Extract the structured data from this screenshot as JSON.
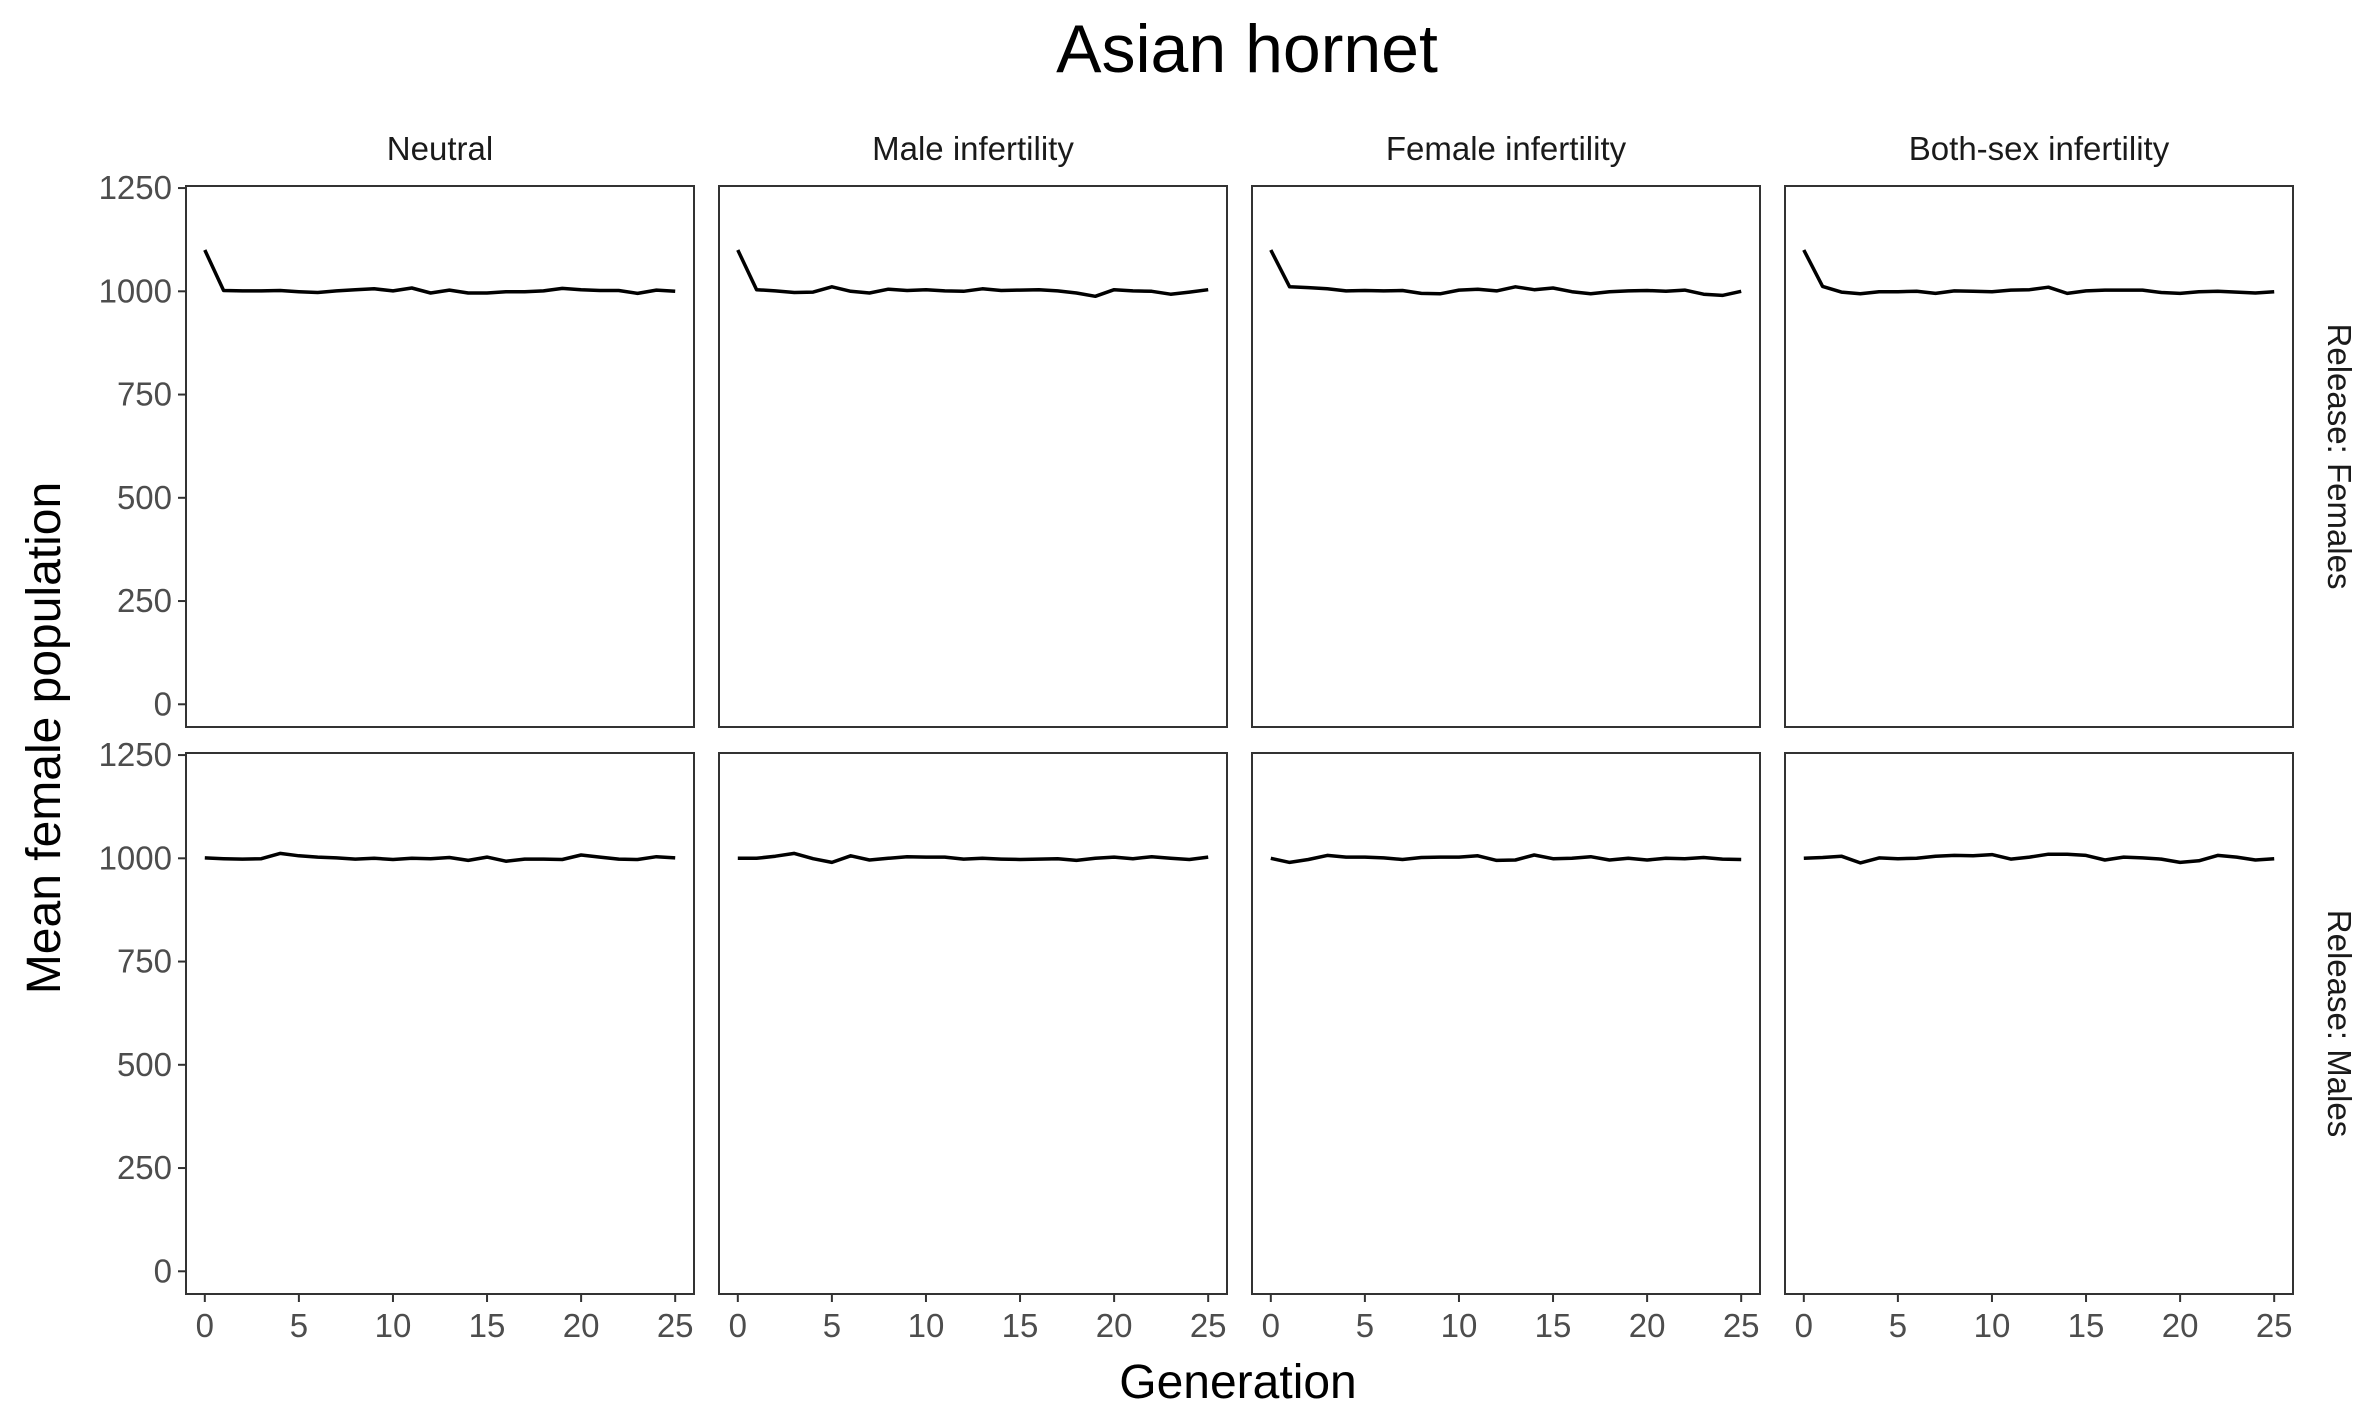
{
  "chart_data": {
    "type": "line",
    "title": "Asian hornet",
    "xlabel": "Generation",
    "ylabel": "Mean female population",
    "xlim": [
      -1,
      26
    ],
    "ylim": [
      -55,
      1255
    ],
    "xticks": [
      0,
      5,
      10,
      15,
      20,
      25
    ],
    "yticks": [
      0,
      250,
      500,
      750,
      1000,
      1250
    ],
    "grid": false,
    "legend": "none",
    "line_color": "#000000",
    "columns": [
      "Neutral",
      "Male infertility",
      "Female infertility",
      "Both-sex infertility"
    ],
    "rows": [
      "Release: Females",
      "Release: Males"
    ],
    "x": [
      0,
      1,
      2,
      3,
      4,
      5,
      6,
      7,
      8,
      9,
      10,
      11,
      12,
      13,
      14,
      15,
      16,
      17,
      18,
      19,
      20,
      21,
      22,
      23,
      24,
      25
    ],
    "panels": [
      {
        "row": "Release: Females",
        "column": "Neutral",
        "values": [
          1100,
          1002,
          1001,
          1001,
          1002,
          999,
          997,
          1001,
          1004,
          1006,
          1001,
          1008,
          996,
          1003,
          996,
          996,
          999,
          999,
          1001,
          1007,
          1004,
          1002,
          1002,
          995,
          1003,
          1000
        ]
      },
      {
        "row": "Release: Females",
        "column": "Male infertility",
        "values": [
          1100,
          1004,
          1001,
          997,
          998,
          1011,
          1000,
          996,
          1005,
          1002,
          1004,
          1001,
          1000,
          1006,
          1002,
          1003,
          1004,
          1001,
          996,
          988,
          1004,
          1001,
          1000,
          993,
          998,
          1004
        ]
      },
      {
        "row": "Release: Females",
        "column": "Female infertility",
        "values": [
          1100,
          1011,
          1009,
          1006,
          1001,
          1002,
          1001,
          1002,
          995,
          994,
          1003,
          1005,
          1001,
          1011,
          1004,
          1008,
          999,
          994,
          999,
          1001,
          1002,
          1000,
          1003,
          993,
          990,
          1000
        ]
      },
      {
        "row": "Release: Females",
        "column": "Both-sex infertility",
        "values": [
          1100,
          1012,
          998,
          994,
          999,
          999,
          1000,
          995,
          1001,
          1000,
          999,
          1003,
          1004,
          1010,
          995,
          1001,
          1003,
          1003,
          1003,
          997,
          995,
          999,
          1000,
          998,
          996,
          999
        ]
      },
      {
        "row": "Release: Males",
        "column": "Neutral",
        "values": [
          1001,
          999,
          998,
          999,
          1012,
          1006,
          1003,
          1001,
          998,
          1000,
          997,
          1000,
          999,
          1002,
          995,
          1003,
          993,
          998,
          998,
          997,
          1008,
          1003,
          998,
          997,
          1004,
          1001
        ]
      },
      {
        "row": "Release: Males",
        "column": "Male infertility",
        "values": [
          1000,
          1000,
          1005,
          1012,
          999,
          990,
          1006,
          996,
          1000,
          1004,
          1003,
          1003,
          998,
          1000,
          998,
          997,
          998,
          999,
          995,
          1000,
          1003,
          999,
          1004,
          1000,
          997,
          1003
        ]
      },
      {
        "row": "Release: Males",
        "column": "Female infertility",
        "values": [
          1000,
          990,
          997,
          1007,
          1003,
          1003,
          1001,
          997,
          1002,
          1003,
          1003,
          1006,
          995,
          996,
          1008,
          999,
          1000,
          1004,
          996,
          1000,
          996,
          1000,
          999,
          1002,
          998,
          997
        ]
      },
      {
        "row": "Release: Males",
        "column": "Both-sex infertility",
        "values": [
          1000,
          1002,
          1005,
          989,
          1001,
          999,
          1000,
          1005,
          1007,
          1006,
          1009,
          998,
          1003,
          1010,
          1010,
          1007,
          996,
          1003,
          1001,
          998,
          990,
          994,
          1007,
          1003,
          996,
          999
        ]
      }
    ]
  }
}
